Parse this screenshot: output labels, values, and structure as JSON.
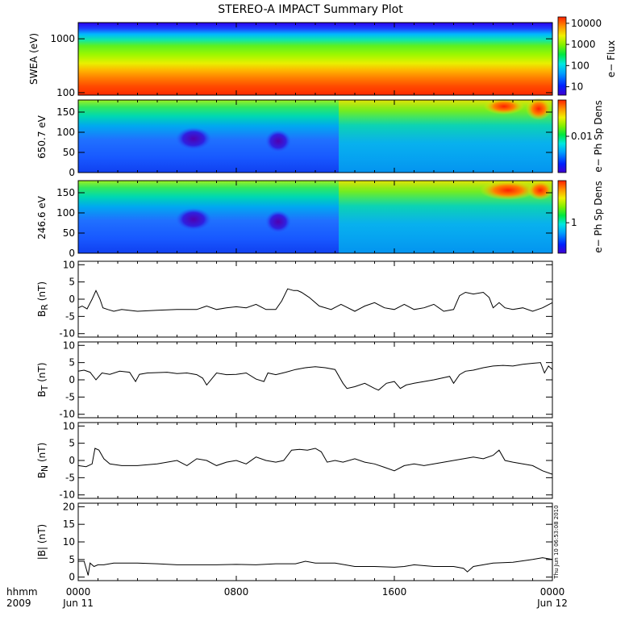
{
  "title": "STEREO-A IMPACT Summary Plot",
  "side_stamp": "Thu Jun 10 06:53:08 2010",
  "time_axis": {
    "left_labels": [
      "hhmm",
      "2009"
    ],
    "ticks": [
      {
        "t": 0,
        "label": "0000",
        "sub": "Jun 11"
      },
      {
        "t": 8,
        "label": "0800",
        "sub": ""
      },
      {
        "t": 16,
        "label": "1600",
        "sub": ""
      },
      {
        "t": 24,
        "label": "0000",
        "sub": "Jun 12"
      }
    ],
    "range_hours": [
      0,
      24
    ]
  },
  "chart_data": [
    {
      "type": "heatmap",
      "name": "swea",
      "ylabel": "SWEA (eV)",
      "yscale": "log",
      "ylim": [
        90,
        2000
      ],
      "yticks": [
        100,
        1000
      ],
      "ytick_labels": [
        "100",
        "1000"
      ],
      "colorbar_label": "e− Flux",
      "colorbar_ticks": [
        "10",
        "100",
        "1000",
        "10000"
      ],
      "colorbar_scale": "log",
      "colorbar_range": [
        4,
        20000
      ]
    },
    {
      "type": "heatmap",
      "name": "pad650",
      "ylabel": "650.7 eV",
      "ylim": [
        0,
        180
      ],
      "yticks": [
        0,
        50,
        100,
        150
      ],
      "colorbar_label": "e− Ph Sp Dens",
      "colorbar_ticks": [
        "0.01"
      ],
      "colorbar_tick_fracs": [
        0.5
      ]
    },
    {
      "type": "heatmap",
      "name": "pad246",
      "ylabel": "246.6 eV",
      "ylim": [
        0,
        180
      ],
      "yticks": [
        0,
        50,
        100,
        150
      ],
      "colorbar_label": "e− Ph Sp Dens",
      "colorbar_ticks": [
        "1"
      ],
      "colorbar_tick_fracs": [
        0.42
      ]
    },
    {
      "type": "line",
      "name": "br",
      "ylabel_main": "B",
      "ylabel_sub": "R",
      "ylabel_unit": " (nT)",
      "ylim": [
        -11,
        11
      ],
      "yticks": [
        -10,
        -5,
        0,
        5,
        10
      ],
      "x": [
        0,
        0.2,
        0.45,
        0.7,
        0.9,
        1.1,
        1.25,
        1.5,
        1.8,
        2.2,
        3,
        4,
        5,
        6,
        6.5,
        7,
        7.5,
        8,
        8.5,
        9,
        9.5,
        10,
        10.3,
        10.6,
        10.9,
        11.1,
        11.3,
        11.7,
        12.2,
        12.8,
        13.3,
        14,
        14.5,
        15,
        15.5,
        16,
        16.5,
        17,
        17.5,
        18,
        18.5,
        19,
        19.3,
        19.6,
        20,
        20.5,
        20.8,
        21,
        21.3,
        21.6,
        22,
        22.5,
        23,
        23.5,
        24
      ],
      "y": [
        -2.5,
        -2,
        -2.8,
        0,
        2.5,
        0,
        -2.5,
        -3,
        -3.5,
        -3,
        -3.5,
        -3.2,
        -3,
        -3,
        -2,
        -3,
        -2.5,
        -2.2,
        -2.5,
        -1.5,
        -3,
        -3,
        -0.5,
        3,
        2.5,
        2.5,
        2,
        0.5,
        -2,
        -3,
        -1.5,
        -3.5,
        -2,
        -1,
        -2.5,
        -3,
        -1.5,
        -3,
        -2.5,
        -1.5,
        -3.5,
        -3,
        1,
        2,
        1.5,
        2,
        0.5,
        -2.5,
        -1,
        -2.5,
        -3,
        -2.5,
        -3.5,
        -2.5,
        -1
      ]
    },
    {
      "type": "line",
      "name": "bt",
      "ylabel_main": "B",
      "ylabel_sub": "T",
      "ylabel_unit": " (nT)",
      "ylim": [
        -11,
        11
      ],
      "yticks": [
        -10,
        -5,
        0,
        5,
        10
      ],
      "x": [
        0,
        0.3,
        0.6,
        0.9,
        1.2,
        1.6,
        2.1,
        2.6,
        2.9,
        3.1,
        3.5,
        4.5,
        5,
        5.5,
        6,
        6.3,
        6.5,
        7,
        7.5,
        8,
        8.5,
        9,
        9.4,
        9.6,
        10,
        10.5,
        11,
        11.5,
        12,
        12.5,
        13,
        13.4,
        13.6,
        14,
        14.5,
        15,
        15.2,
        15.6,
        16,
        16.3,
        16.6,
        17,
        17.5,
        18,
        18.4,
        18.8,
        19,
        19.3,
        19.6,
        20,
        20.5,
        21,
        21.5,
        22,
        22.5,
        23,
        23.4,
        23.6,
        23.8,
        24
      ],
      "y": [
        2.5,
        2.8,
        2.2,
        0,
        2,
        1.6,
        2.5,
        2.2,
        -0.5,
        1.6,
        2,
        2.2,
        1.8,
        2,
        1.5,
        0.5,
        -1.5,
        2,
        1.5,
        1.6,
        2,
        0.2,
        -0.5,
        2,
        1.5,
        2.2,
        3,
        3.5,
        3.8,
        3.5,
        3,
        -1,
        -2.5,
        -2,
        -1,
        -2.5,
        -3,
        -1,
        -0.5,
        -2.5,
        -1.5,
        -1,
        -0.5,
        0,
        0.5,
        1,
        -1,
        1.5,
        2.5,
        2.8,
        3.5,
        4,
        4.2,
        4,
        4.5,
        4.8,
        5,
        2,
        4,
        3
      ]
    },
    {
      "type": "line",
      "name": "bn",
      "ylabel_main": "B",
      "ylabel_sub": "N",
      "ylabel_unit": " (nT)",
      "ylim": [
        -11,
        11
      ],
      "yticks": [
        -10,
        -5,
        0,
        5,
        10
      ],
      "x": [
        0,
        0.4,
        0.7,
        0.85,
        1.05,
        1.3,
        1.6,
        2.2,
        3,
        4,
        4.5,
        5,
        5.5,
        6,
        6.5,
        7,
        7.5,
        8,
        8.5,
        9,
        9.5,
        10,
        10.4,
        10.8,
        11.2,
        11.6,
        12,
        12.3,
        12.6,
        13,
        13.4,
        14,
        14.5,
        15,
        15.5,
        16,
        16.5,
        17,
        17.5,
        18,
        18.5,
        19,
        19.5,
        20,
        20.5,
        21,
        21.3,
        21.6,
        22,
        22.5,
        23,
        23.5,
        24
      ],
      "y": [
        -1.5,
        -1.8,
        -1,
        3.5,
        3,
        0.5,
        -1,
        -1.5,
        -1.5,
        -1,
        -0.5,
        0,
        -1.5,
        0.5,
        0,
        -1.5,
        -0.5,
        0,
        -1,
        1,
        0,
        -0.5,
        0,
        3,
        3.2,
        3,
        3.5,
        2.5,
        -0.5,
        0,
        -0.5,
        0.5,
        -0.5,
        -1,
        -2,
        -3,
        -1.5,
        -1,
        -1.5,
        -1,
        -0.5,
        0,
        0.5,
        1,
        0.5,
        1.5,
        3,
        0,
        -0.5,
        -1,
        -1.5,
        -3,
        -4
      ]
    },
    {
      "type": "line",
      "name": "bmag",
      "ylabel_main": "|B| (nT)",
      "ylim": [
        -1,
        21
      ],
      "yticks": [
        0,
        5,
        10,
        15,
        20
      ],
      "x": [
        0,
        0.3,
        0.5,
        0.6,
        0.8,
        1,
        1.3,
        1.8,
        2.5,
        3,
        4,
        5,
        6,
        7,
        8,
        9,
        10,
        11,
        11.5,
        12,
        13,
        13.5,
        14,
        15,
        16,
        16.5,
        17,
        18,
        19,
        19.5,
        19.7,
        20,
        21,
        22,
        23,
        23.5,
        24
      ],
      "y": [
        4.5,
        4.5,
        0.5,
        4,
        3,
        3.5,
        3.5,
        4,
        4,
        4,
        3.8,
        3.5,
        3.5,
        3.5,
        3.6,
        3.5,
        3.8,
        3.8,
        4.5,
        4,
        4,
        3.5,
        3,
        3,
        2.8,
        3,
        3.5,
        3,
        3,
        2.5,
        1.5,
        3,
        4,
        4.2,
        5,
        5.5,
        5
      ]
    }
  ]
}
